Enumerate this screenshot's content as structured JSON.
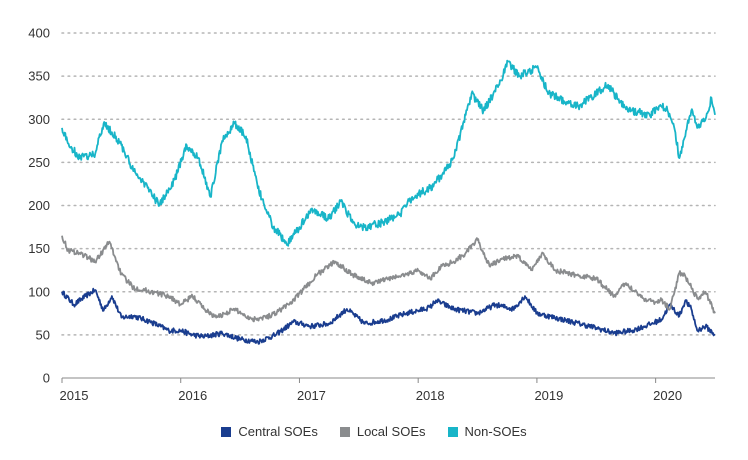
{
  "chart_data": {
    "type": "line",
    "title": "",
    "xlabel": "",
    "ylabel": "",
    "ylim": [
      0,
      400
    ],
    "yticks": [
      0,
      50,
      100,
      150,
      200,
      250,
      300,
      350,
      400
    ],
    "xticks": [
      "2015",
      "2016",
      "2017",
      "2018",
      "2019",
      "2020"
    ],
    "xlim": [
      2015.0,
      2020.5
    ],
    "grid": "horizontal dotted",
    "legend_position": "bottom",
    "series": [
      {
        "name": "Central SOEs",
        "color": "#1a3d8f",
        "x": [
          2015.0,
          2015.1,
          2015.2,
          2015.28,
          2015.35,
          2015.42,
          2015.5,
          2015.6,
          2015.75,
          2015.9,
          2016.0,
          2016.1,
          2016.2,
          2016.35,
          2016.5,
          2016.65,
          2016.8,
          2016.95,
          2017.1,
          2017.25,
          2017.4,
          2017.55,
          2017.75,
          2017.9,
          2018.0,
          2018.1,
          2018.15,
          2018.3,
          2018.5,
          2018.65,
          2018.8,
          2018.9,
          2019.0,
          2019.15,
          2019.3,
          2019.5,
          2019.65,
          2019.8,
          2019.95,
          2020.05,
          2020.12,
          2020.2,
          2020.25,
          2020.3,
          2020.35,
          2020.42,
          2020.5
        ],
        "y": [
          100,
          85,
          95,
          102,
          78,
          95,
          70,
          72,
          65,
          55,
          55,
          50,
          48,
          52,
          45,
          42,
          50,
          65,
          60,
          63,
          80,
          63,
          68,
          75,
          78,
          82,
          90,
          80,
          75,
          85,
          80,
          95,
          75,
          70,
          65,
          58,
          52,
          55,
          62,
          68,
          85,
          72,
          90,
          80,
          55,
          60,
          50
        ]
      },
      {
        "name": "Local SOEs",
        "color": "#8a8c8e",
        "x": [
          2015.0,
          2015.05,
          2015.15,
          2015.28,
          2015.4,
          2015.5,
          2015.6,
          2015.75,
          2015.9,
          2016.0,
          2016.1,
          2016.2,
          2016.3,
          2016.45,
          2016.6,
          2016.75,
          2016.85,
          2016.95,
          2017.05,
          2017.15,
          2017.3,
          2017.45,
          2017.6,
          2017.75,
          2017.9,
          2018.0,
          2018.1,
          2018.2,
          2018.3,
          2018.4,
          2018.5,
          2018.6,
          2018.75,
          2018.85,
          2018.95,
          2019.05,
          2019.15,
          2019.3,
          2019.5,
          2019.65,
          2019.75,
          2019.9,
          2020.0,
          2020.05,
          2020.12,
          2020.2,
          2020.25,
          2020.35,
          2020.42,
          2020.5
        ],
        "y": [
          165,
          148,
          145,
          135,
          158,
          120,
          105,
          100,
          95,
          85,
          95,
          80,
          70,
          80,
          68,
          72,
          80,
          90,
          105,
          120,
          135,
          120,
          110,
          115,
          120,
          125,
          115,
          130,
          135,
          145,
          160,
          130,
          140,
          140,
          125,
          145,
          125,
          120,
          115,
          95,
          110,
          92,
          88,
          90,
          80,
          122,
          118,
          92,
          100,
          75
        ]
      },
      {
        "name": "Non-SOEs",
        "color": "#18b5c8",
        "x": [
          2015.0,
          2015.05,
          2015.15,
          2015.28,
          2015.35,
          2015.42,
          2015.5,
          2015.6,
          2015.7,
          2015.82,
          2015.95,
          2016.05,
          2016.15,
          2016.25,
          2016.35,
          2016.45,
          2016.55,
          2016.65,
          2016.72,
          2016.78,
          2016.9,
          2017.0,
          2017.1,
          2017.25,
          2017.35,
          2017.45,
          2017.55,
          2017.7,
          2017.85,
          2017.95,
          2018.1,
          2018.2,
          2018.3,
          2018.4,
          2018.45,
          2018.55,
          2018.7,
          2018.75,
          2018.85,
          2019.0,
          2019.1,
          2019.25,
          2019.35,
          2019.5,
          2019.6,
          2019.7,
          2019.8,
          2019.95,
          2020.05,
          2020.1,
          2020.15,
          2020.2,
          2020.3,
          2020.35,
          2020.42,
          2020.47,
          2020.5
        ],
        "y": [
          290,
          272,
          255,
          260,
          295,
          285,
          270,
          240,
          225,
          200,
          230,
          270,
          255,
          210,
          275,
          295,
          280,
          220,
          195,
          175,
          155,
          175,
          195,
          185,
          205,
          180,
          175,
          180,
          190,
          210,
          220,
          235,
          255,
          305,
          330,
          310,
          345,
          368,
          350,
          360,
          330,
          320,
          315,
          330,
          340,
          320,
          310,
          305,
          315,
          310,
          295,
          255,
          310,
          290,
          300,
          325,
          305
        ]
      }
    ]
  }
}
